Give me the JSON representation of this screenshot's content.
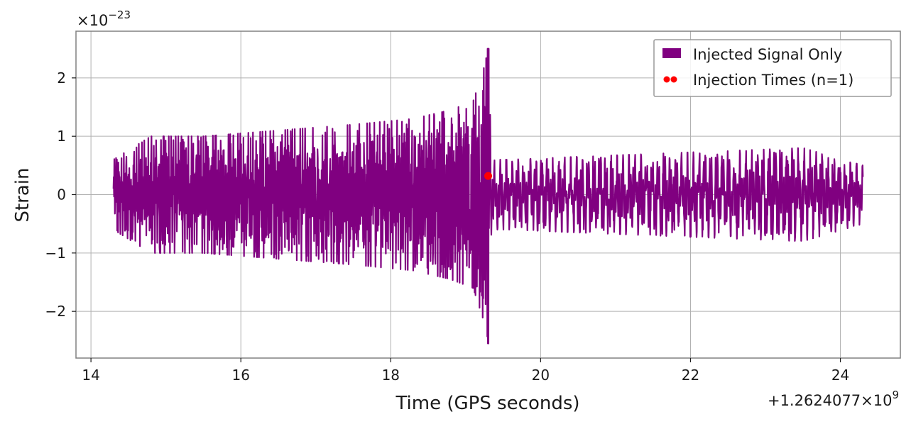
{
  "chart_data": {
    "type": "line",
    "title": "",
    "xlabel": "Time (GPS seconds)",
    "ylabel": "Strain",
    "x_offset_label": "+1.2624077×10",
    "x_offset_exponent": "9",
    "y_multiplier_label": "×10",
    "y_multiplier_exponent": "−23",
    "xlim": [
      13.8,
      24.8
    ],
    "ylim": [
      -2.8,
      2.8
    ],
    "xticks": [
      14,
      16,
      18,
      20,
      22,
      24
    ],
    "xtick_labels": [
      "14",
      "16",
      "18",
      "20",
      "22",
      "24"
    ],
    "yticks": [
      -2,
      -1,
      0,
      1,
      2
    ],
    "ytick_labels": [
      "−2",
      "−1",
      "0",
      "1",
      "2"
    ],
    "grid": true,
    "legend_position": "top-right",
    "colors": {
      "signal": "#800080",
      "injection": "#ff0000",
      "grid": "#b0b0b0",
      "frame": "#808080"
    },
    "series": [
      {
        "name": "Injected Signal Only",
        "style": "line",
        "x_start": 14.3,
        "x_end": 24.3,
        "merger_time": 19.3,
        "envelope": [
          [
            14.3,
            0.6
          ],
          [
            14.8,
            1.0
          ],
          [
            15.5,
            1.0
          ],
          [
            16.5,
            1.1
          ],
          [
            17.5,
            1.2
          ],
          [
            18.3,
            1.3
          ],
          [
            18.8,
            1.45
          ],
          [
            19.1,
            1.6
          ],
          [
            19.25,
            2.2
          ],
          [
            19.3,
            2.5
          ],
          [
            19.35,
            0.6
          ],
          [
            19.6,
            0.6
          ],
          [
            20.5,
            0.65
          ],
          [
            21.5,
            0.7
          ],
          [
            22.5,
            0.75
          ],
          [
            23.5,
            0.8
          ],
          [
            24.3,
            0.5
          ]
        ]
      },
      {
        "name": "Injection Times (n=1)",
        "style": "marker",
        "points": [
          {
            "x": 19.3,
            "y": 0.32
          }
        ]
      }
    ]
  }
}
